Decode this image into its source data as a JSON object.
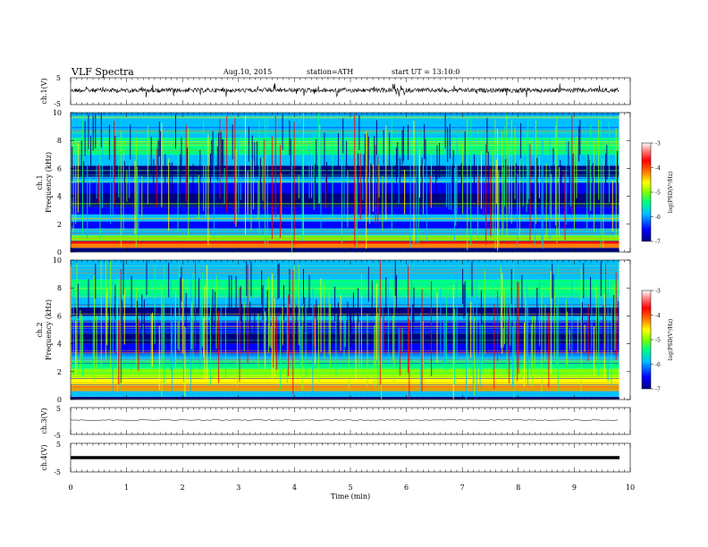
{
  "header": {
    "title": "VLF  Spectra",
    "date": "Aug.10, 2015",
    "station": "station=ATH",
    "start": "start  UT  =   13:10:0"
  },
  "panels": {
    "ch1_wave": {
      "ylabel": "ch.1(V)",
      "ticks": [
        "5",
        "-5"
      ]
    },
    "ch1_spec": {
      "ylabel_top": "ch.1",
      "ylabel": "Frequency  (kHz)",
      "ticks": [
        "0",
        "2",
        "4",
        "6",
        "8",
        "10"
      ]
    },
    "ch2_spec": {
      "ylabel_top": "ch.2",
      "ylabel": "Frequency  (kHz)",
      "ticks": [
        "0",
        "2",
        "4",
        "6",
        "8",
        "10"
      ]
    },
    "ch3_wave": {
      "ylabel": "ch.3(V)",
      "ticks": [
        "5",
        "-5"
      ]
    },
    "ch4_wave": {
      "ylabel": "ch.4(V)",
      "ticks": [
        "5",
        "-5"
      ]
    }
  },
  "colorbar": {
    "label": "log(PSD(V²/Hz)",
    "ticks": [
      "-3",
      "-4",
      "-5",
      "-6",
      "-7"
    ],
    "colors": [
      "#000080",
      "#0000ff",
      "#00c0ff",
      "#00ff80",
      "#80ff00",
      "#ffff00",
      "#ff8000",
      "#ff0000",
      "#ff8080",
      "#ffffff"
    ]
  },
  "xaxis": {
    "label": "Time  (min)",
    "ticks": [
      "0",
      "1",
      "2",
      "3",
      "4",
      "5",
      "6",
      "7",
      "8",
      "9",
      "10"
    ]
  },
  "chart_data": [
    {
      "type": "line",
      "title": "ch.1(V)",
      "xlabel": "Time (min)",
      "ylabel": "ch.1(V)",
      "xlim": [
        0,
        10
      ],
      "ylim": [
        -5,
        5
      ],
      "data_end_min": 9.8,
      "series": [
        {
          "values_description_mean": 0.0,
          "amplitude_approx": 1.0
        }
      ]
    },
    {
      "type": "heatmap",
      "title": "ch.1",
      "xlabel": "Time (min)",
      "ylabel": "Frequency (kHz)",
      "xlim": [
        0,
        10
      ],
      "ylim": [
        0,
        10
      ],
      "colorbar_range": [
        -7,
        -3
      ],
      "colorbar_label": "log(PSD(V²/Hz)"
    },
    {
      "type": "heatmap",
      "title": "ch.2",
      "xlabel": "Time (min)",
      "ylabel": "Frequency (kHz)",
      "xlim": [
        0,
        10
      ],
      "ylim": [
        0,
        10
      ],
      "colorbar_range": [
        -7,
        -3
      ],
      "colorbar_label": "log(PSD(V²/Hz)"
    },
    {
      "type": "line",
      "title": "ch.3(V)",
      "xlabel": "Time (min)",
      "ylabel": "ch.3(V)",
      "xlim": [
        0,
        10
      ],
      "ylim": [
        -5,
        5
      ],
      "level": 0.0
    },
    {
      "type": "line",
      "title": "ch.4(V)",
      "xlabel": "Time (min)",
      "ylabel": "ch.4(V)",
      "xlim": [
        0,
        10
      ],
      "ylim": [
        -5,
        5
      ],
      "level": 0.0
    }
  ]
}
